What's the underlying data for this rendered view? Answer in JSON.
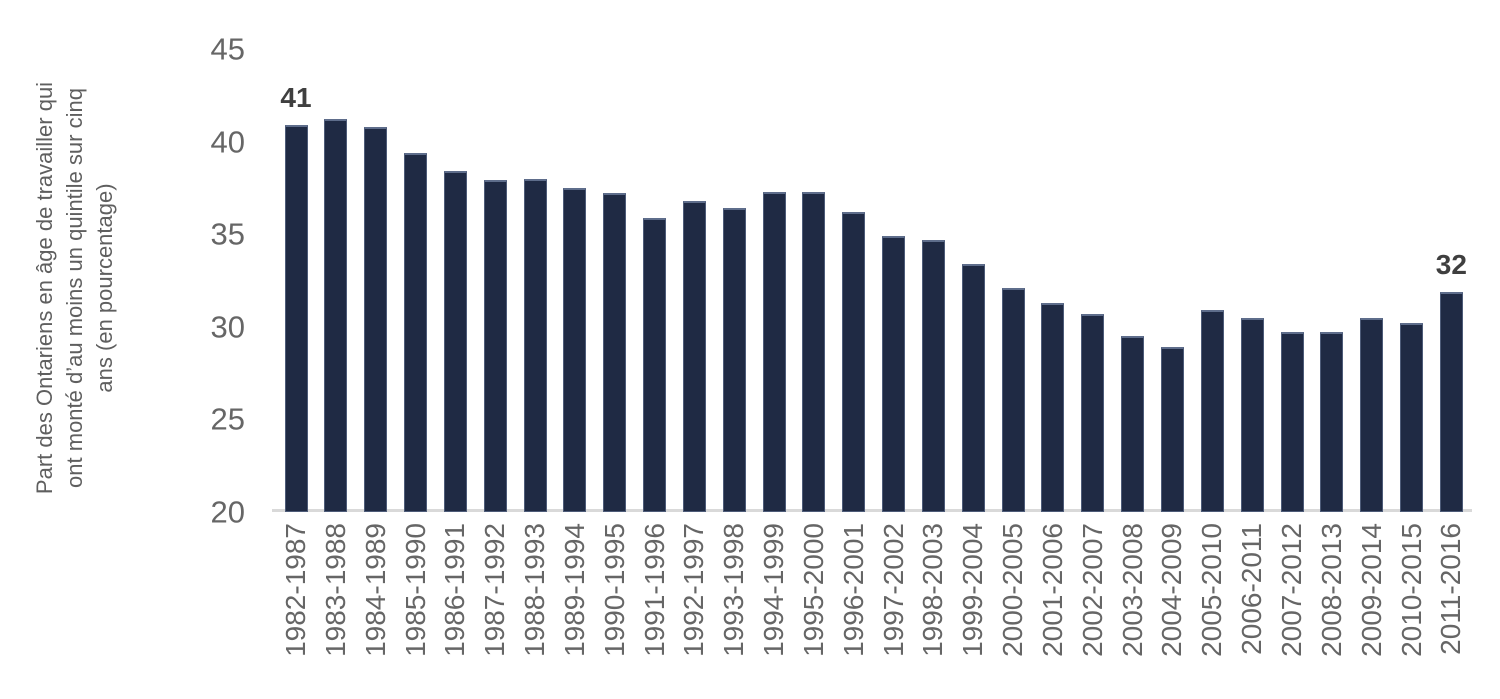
{
  "chart_data": {
    "type": "bar",
    "title": "",
    "xlabel": "",
    "ylabel": "Part des Ontariens en âge de travailler qui ont monté d’au moins un quintile sur cinq ans (en pourcentage)",
    "ylabel_lines": [
      "Part des Ontariens en âge de travailler qui",
      "ont monté d’au moins un quintile sur cinq",
      "ans (en pourcentage)"
    ],
    "categories": [
      "1982-1987",
      "1983-1988",
      "1984-1989",
      "1985-1990",
      "1986-1991",
      "1987-1992",
      "1988-1993",
      "1989-1994",
      "1990-1995",
      "1991-1996",
      "1992-1997",
      "1993-1998",
      "1994-1999",
      "1995-2000",
      "1996-2001",
      "1997-2002",
      "1998-2003",
      "1999-2004",
      "2000-2005",
      "2001-2006",
      "2002-2007",
      "2003-2008",
      "2004-2009",
      "2005-2010",
      "2006-2011",
      "2007-2012",
      "2008-2013",
      "2009-2014",
      "2010-2015",
      "2011-2016"
    ],
    "values": [
      40.9,
      41.2,
      40.8,
      39.4,
      38.4,
      37.9,
      38.0,
      37.5,
      37.2,
      35.9,
      36.8,
      36.4,
      37.3,
      37.3,
      36.2,
      34.9,
      34.7,
      33.4,
      32.1,
      31.3,
      30.7,
      29.5,
      28.9,
      30.9,
      30.5,
      29.7,
      29.7,
      30.5,
      30.2,
      31.9
    ],
    "data_labels": [
      {
        "index": 0,
        "text": "41"
      },
      {
        "index": 29,
        "text": "32"
      }
    ],
    "ylim": [
      20,
      45
    ],
    "yticks": [
      20,
      25,
      30,
      35,
      40,
      45
    ],
    "grid": false,
    "legend": "none",
    "bar_color": "#1f2a44",
    "axis_line_color": "#d9d9d9",
    "tick_label_color": "#666666",
    "axis_title_color": "#5f5f5f",
    "data_label_color": "#3f3f3f",
    "background_color": "#ffffff"
  }
}
